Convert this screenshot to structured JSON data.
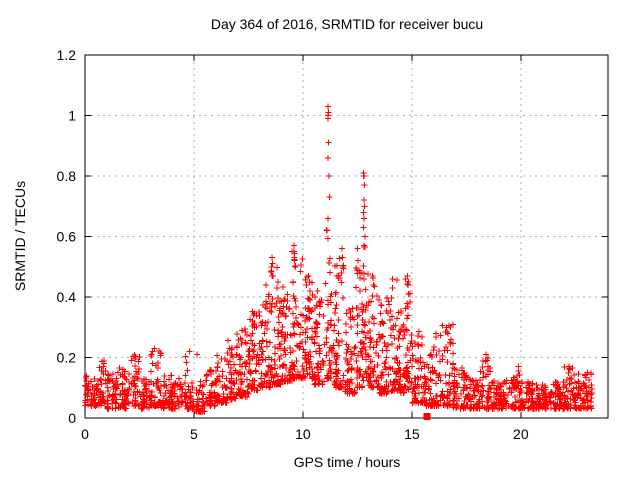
{
  "chart_data": {
    "type": "scatter",
    "title": "Day 364 of 2016, SRMTID for receiver bucu",
    "xlabel": "GPS time / hours",
    "ylabel": "SRMTID / TECUs",
    "xlim": [
      0,
      24
    ],
    "ylim": [
      0,
      1.2
    ],
    "xticks": [
      0,
      5,
      10,
      15,
      20
    ],
    "xtick_labels": [
      "0",
      "5",
      "10",
      "15",
      "20"
    ],
    "yticks": [
      0,
      0.2,
      0.4,
      0.6,
      0.8,
      1.0,
      1.2
    ],
    "ytick_labels": [
      "0",
      "0.2",
      "0.4",
      "0.6",
      "0.8",
      "1",
      "1.2"
    ],
    "grid": true,
    "legend": "none",
    "marker": "plus",
    "marker_color": "#ff0000",
    "grid_color": "#aaaaaa",
    "frame_color": "#000000",
    "data_span_hours": [
      0,
      23.3
    ],
    "sampling_note": "Dense scatter (~2400 pts) represented as time bins [t_start,t_end,y_min,y_max,count,tail_shape] plus explicit outlier points read from the plot.",
    "envelope_bins": [
      [
        0.0,
        0.5,
        0.04,
        0.14,
        45,
        1.3
      ],
      [
        0.5,
        1.0,
        0.04,
        0.19,
        45,
        1.5
      ],
      [
        1.0,
        1.5,
        0.03,
        0.15,
        45,
        1.5
      ],
      [
        1.5,
        2.0,
        0.03,
        0.17,
        45,
        1.5
      ],
      [
        2.0,
        2.5,
        0.04,
        0.21,
        45,
        1.6
      ],
      [
        2.5,
        3.0,
        0.03,
        0.13,
        45,
        1.4
      ],
      [
        3.0,
        3.5,
        0.04,
        0.23,
        48,
        1.8
      ],
      [
        3.5,
        4.0,
        0.03,
        0.16,
        45,
        1.6
      ],
      [
        4.0,
        4.5,
        0.03,
        0.13,
        42,
        1.4
      ],
      [
        4.5,
        5.0,
        0.03,
        0.22,
        42,
        2.2
      ],
      [
        5.0,
        5.5,
        0.02,
        0.12,
        40,
        1.8
      ],
      [
        5.5,
        6.0,
        0.04,
        0.16,
        45,
        1.6
      ],
      [
        6.0,
        6.5,
        0.05,
        0.21,
        48,
        1.7
      ],
      [
        6.5,
        7.0,
        0.06,
        0.28,
        50,
        1.9
      ],
      [
        7.0,
        7.5,
        0.07,
        0.3,
        55,
        1.9
      ],
      [
        7.5,
        8.0,
        0.09,
        0.36,
        58,
        1.9
      ],
      [
        8.0,
        8.5,
        0.1,
        0.42,
        60,
        2.0
      ],
      [
        8.5,
        9.0,
        0.11,
        0.5,
        62,
        2.1
      ],
      [
        9.0,
        9.5,
        0.12,
        0.44,
        60,
        1.9
      ],
      [
        9.5,
        10.0,
        0.13,
        0.55,
        62,
        2.1
      ],
      [
        10.0,
        10.5,
        0.13,
        0.48,
        62,
        2.0
      ],
      [
        10.5,
        11.0,
        0.11,
        0.42,
        60,
        1.9
      ],
      [
        11.0,
        11.35,
        0.13,
        0.65,
        48,
        2.2
      ],
      [
        11.35,
        11.9,
        0.1,
        0.55,
        62,
        2.1
      ],
      [
        11.9,
        12.4,
        0.08,
        0.4,
        58,
        1.9
      ],
      [
        12.4,
        12.75,
        0.1,
        0.5,
        45,
        2.0
      ],
      [
        12.75,
        13.0,
        0.12,
        0.58,
        35,
        2.1
      ],
      [
        13.0,
        13.5,
        0.1,
        0.47,
        58,
        2.0
      ],
      [
        13.5,
        14.0,
        0.08,
        0.4,
        56,
        1.9
      ],
      [
        14.0,
        14.35,
        0.09,
        0.46,
        40,
        2.0
      ],
      [
        14.35,
        14.7,
        0.08,
        0.36,
        40,
        1.9
      ],
      [
        14.7,
        15.0,
        0.09,
        0.47,
        38,
        2.0
      ],
      [
        15.0,
        15.5,
        0.05,
        0.3,
        50,
        1.9
      ],
      [
        15.5,
        15.85,
        0.04,
        0.22,
        35,
        1.8
      ],
      [
        15.85,
        16.3,
        0.04,
        0.28,
        45,
        2.0
      ],
      [
        16.3,
        16.9,
        0.04,
        0.31,
        58,
        2.1
      ],
      [
        16.9,
        17.5,
        0.03,
        0.17,
        55,
        1.7
      ],
      [
        17.5,
        18.1,
        0.03,
        0.14,
        55,
        1.6
      ],
      [
        18.1,
        18.7,
        0.03,
        0.2,
        55,
        1.9
      ],
      [
        18.7,
        19.3,
        0.03,
        0.13,
        55,
        1.5
      ],
      [
        19.3,
        20.0,
        0.03,
        0.16,
        62,
        1.7
      ],
      [
        20.0,
        20.7,
        0.03,
        0.12,
        62,
        1.5
      ],
      [
        20.7,
        21.4,
        0.03,
        0.11,
        62,
        1.5
      ],
      [
        21.4,
        22.0,
        0.03,
        0.12,
        55,
        1.5
      ],
      [
        22.0,
        22.5,
        0.03,
        0.17,
        48,
        1.8
      ],
      [
        22.5,
        23.3,
        0.03,
        0.15,
        70,
        1.7
      ]
    ],
    "outliers": [
      [
        11.15,
        1.03
      ],
      [
        11.17,
        1.01
      ],
      [
        11.16,
        1.0
      ],
      [
        11.15,
        0.99
      ],
      [
        11.18,
        0.91
      ],
      [
        11.16,
        0.86
      ],
      [
        11.2,
        0.8
      ],
      [
        11.22,
        0.73
      ],
      [
        11.15,
        0.66
      ],
      [
        11.1,
        0.62
      ],
      [
        12.78,
        0.81
      ],
      [
        12.8,
        0.8
      ],
      [
        12.79,
        0.8
      ],
      [
        12.82,
        0.77
      ],
      [
        12.8,
        0.72
      ],
      [
        12.83,
        0.7
      ],
      [
        12.78,
        0.68
      ],
      [
        12.81,
        0.66
      ],
      [
        12.79,
        0.63
      ],
      [
        12.84,
        0.6
      ],
      [
        12.8,
        0.57
      ],
      [
        8.55,
        0.5
      ],
      [
        8.58,
        0.53
      ],
      [
        8.6,
        0.51
      ],
      [
        8.63,
        0.47
      ],
      [
        8.3,
        0.44
      ],
      [
        8.85,
        0.45
      ],
      [
        9.58,
        0.57
      ],
      [
        9.6,
        0.55
      ],
      [
        9.62,
        0.52
      ],
      [
        9.63,
        0.5
      ],
      [
        10.25,
        0.47
      ],
      [
        10.3,
        0.45
      ],
      [
        11.8,
        0.56
      ],
      [
        11.82,
        0.53
      ],
      [
        11.83,
        0.5
      ],
      [
        11.78,
        0.48
      ],
      [
        12.5,
        0.56
      ],
      [
        12.52,
        0.52
      ],
      [
        12.48,
        0.49
      ],
      [
        13.2,
        0.47
      ],
      [
        13.25,
        0.44
      ],
      [
        14.1,
        0.46
      ],
      [
        14.12,
        0.43
      ],
      [
        14.8,
        0.47
      ],
      [
        14.82,
        0.44
      ],
      [
        14.84,
        0.41
      ],
      [
        4.8,
        0.22
      ],
      [
        5.15,
        0.21
      ],
      [
        16.1,
        0.28
      ],
      [
        16.6,
        0.3
      ],
      [
        16.65,
        0.28
      ],
      [
        16.8,
        0.26
      ],
      [
        18.4,
        0.21
      ],
      [
        18.45,
        0.19
      ],
      [
        19.9,
        0.17
      ],
      [
        22.2,
        0.17
      ],
      [
        22.25,
        0.16
      ],
      [
        23.05,
        0.15
      ]
    ],
    "special_points": [
      {
        "marker": "filled-square",
        "x": 15.7,
        "y": 0.005,
        "color": "#ff0000"
      }
    ]
  }
}
